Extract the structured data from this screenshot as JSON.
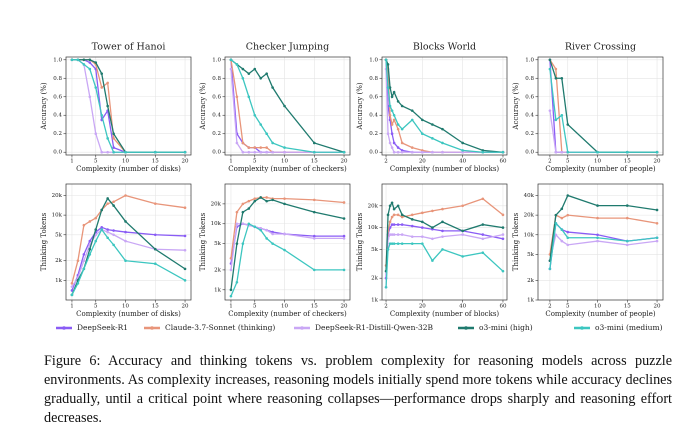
{
  "chart_data": [
    {
      "type": "line",
      "title": "Tower of Hanoi",
      "xlabel": "Complexity (number of disks)",
      "ylabel": "Accuracy (%)",
      "grid": true,
      "x": [
        1,
        2,
        3,
        4,
        5,
        6,
        7,
        8,
        10,
        15,
        20
      ],
      "xlim": [
        0,
        21
      ],
      "xticks": [
        1,
        5,
        10,
        15,
        20
      ],
      "ylim": [
        -0.03,
        1.03
      ],
      "yticks": [
        {
          "value": 0,
          "label": "0.0"
        },
        0.2,
        0.4,
        0.6,
        0.8,
        {
          "value": 1,
          "label": "1.0"
        }
      ],
      "series": [
        {
          "name": "DeepSeek-R1",
          "color": "#8a5cf5",
          "values": [
            1,
            1,
            1,
            0.97,
            0.9,
            0.35,
            0.45,
            0.05,
            0,
            0,
            0
          ]
        },
        {
          "name": "Claude-3.7-Sonnet (thinking)",
          "color": "#e8957a",
          "values": [
            1,
            1,
            1,
            1,
            0.95,
            0.7,
            0.75,
            0.15,
            0,
            0,
            0
          ]
        },
        {
          "name": "DeepSeek-R1-Distill-Qwen-32B",
          "color": "#c9a7f5",
          "values": [
            1,
            1,
            0.95,
            0.6,
            0.2,
            0,
            0,
            0,
            0,
            0,
            0
          ]
        },
        {
          "name": "o3-mini (high)",
          "color": "#1f7a6e",
          "values": [
            1,
            1,
            1,
            1,
            0.97,
            0.85,
            0.5,
            0.2,
            0,
            0,
            0
          ]
        },
        {
          "name": "o3-mini (medium)",
          "color": "#3cc6c0",
          "values": [
            1,
            1,
            0.95,
            0.9,
            0.7,
            0.4,
            0.15,
            0,
            0,
            0,
            0
          ]
        }
      ]
    },
    {
      "type": "line",
      "title": "Checker Jumping",
      "xlabel": "Complexity (number of checkers)",
      "ylabel": "Accuracy (%)",
      "grid": true,
      "x": [
        1,
        2,
        3,
        4,
        5,
        6,
        7,
        8,
        10,
        15,
        20
      ],
      "xlim": [
        0,
        21
      ],
      "xticks": [
        1,
        5,
        10,
        15,
        20
      ],
      "ylim": [
        -0.03,
        1.03
      ],
      "yticks": [
        {
          "value": 0,
          "label": "0.0"
        },
        0.2,
        0.4,
        0.6,
        0.8,
        {
          "value": 1,
          "label": "1.0"
        }
      ],
      "series": [
        {
          "name": "DeepSeek-R1",
          "color": "#8a5cf5",
          "values": [
            1,
            0.2,
            0.1,
            0.05,
            0.05,
            0,
            0,
            0,
            0,
            0,
            0
          ]
        },
        {
          "name": "Claude-3.7-Sonnet (thinking)",
          "color": "#e8957a",
          "values": [
            1,
            0.6,
            0.1,
            0.05,
            0.05,
            0.05,
            0.05,
            0,
            0,
            0,
            0
          ]
        },
        {
          "name": "DeepSeek-R1-Distill-Qwen-32B",
          "color": "#c9a7f5",
          "values": [
            0.9,
            0.1,
            0,
            0,
            0,
            0,
            0,
            0,
            0,
            0,
            0
          ]
        },
        {
          "name": "o3-mini (high)",
          "color": "#1f7a6e",
          "values": [
            1,
            0.95,
            0.9,
            0.85,
            0.9,
            0.8,
            0.85,
            0.7,
            0.5,
            0.1,
            0
          ]
        },
        {
          "name": "o3-mini (medium)",
          "color": "#3cc6c0",
          "values": [
            1,
            0.95,
            0.8,
            0.6,
            0.4,
            0.3,
            0.2,
            0.1,
            0.05,
            0,
            0
          ]
        }
      ]
    },
    {
      "type": "line",
      "title": "Blocks World",
      "xlabel": "Complexity (number of blocks)",
      "ylabel": "Accuracy (%)",
      "grid": true,
      "x": [
        2,
        3,
        4,
        5,
        6,
        8,
        10,
        15,
        20,
        25,
        30,
        40,
        50,
        60
      ],
      "xlim": [
        0,
        62
      ],
      "xticks": [
        2,
        20,
        40,
        60
      ],
      "ylim": [
        -0.03,
        1.03
      ],
      "yticks": [
        {
          "value": 0,
          "label": "0.0"
        },
        0.2,
        0.4,
        0.6,
        0.8,
        {
          "value": 1,
          "label": "1.0"
        }
      ],
      "series": [
        {
          "name": "DeepSeek-R1",
          "color": "#8a5cf5",
          "values": [
            1,
            0.5,
            0.35,
            0.2,
            0.1,
            0.05,
            0.02,
            0,
            0,
            0,
            0,
            0,
            0,
            0
          ]
        },
        {
          "name": "Claude-3.7-Sonnet (thinking)",
          "color": "#e8957a",
          "values": [
            1,
            0.9,
            0.4,
            0.3,
            0.35,
            0.25,
            0.1,
            0.05,
            0.02,
            0,
            0,
            0,
            0,
            0
          ]
        },
        {
          "name": "DeepSeek-R1-Distill-Qwen-32B",
          "color": "#c9a7f5",
          "values": [
            0.9,
            0.2,
            0.1,
            0.05,
            0,
            0,
            0,
            0,
            0,
            0,
            0,
            0,
            0,
            0
          ]
        },
        {
          "name": "o3-mini (high)",
          "color": "#1f7a6e",
          "values": [
            1,
            0.95,
            0.7,
            0.6,
            0.65,
            0.55,
            0.5,
            0.45,
            0.35,
            0.3,
            0.25,
            0.1,
            0.02,
            0
          ]
        },
        {
          "name": "o3-mini (medium)",
          "color": "#3cc6c0",
          "values": [
            1,
            0.7,
            0.5,
            0.45,
            0.4,
            0.3,
            0.25,
            0.35,
            0.2,
            0.15,
            0.1,
            0.02,
            0,
            0
          ]
        }
      ]
    },
    {
      "type": "line",
      "title": "River Crossing",
      "xlabel": "Complexity (number of people)",
      "ylabel": "Accuracy (%)",
      "grid": true,
      "x": [
        2,
        3,
        4,
        5,
        10,
        15,
        20
      ],
      "xlim": [
        0,
        21
      ],
      "xticks": [
        2,
        5,
        10,
        15,
        20
      ],
      "ylim": [
        -0.03,
        1.03
      ],
      "yticks": [
        {
          "value": 0,
          "label": "0.0"
        },
        0.2,
        0.4,
        0.6,
        0.8,
        {
          "value": 1,
          "label": "1.0"
        }
      ],
      "series": [
        {
          "name": "DeepSeek-R1",
          "color": "#8a5cf5",
          "values": [
            1,
            0,
            0,
            0,
            0,
            0,
            0
          ]
        },
        {
          "name": "Claude-3.7-Sonnet (thinking)",
          "color": "#e8957a",
          "values": [
            1,
            0.9,
            0,
            0,
            0,
            0,
            0
          ]
        },
        {
          "name": "DeepSeek-R1-Distill-Qwen-32B",
          "color": "#c9a7f5",
          "values": [
            0.45,
            0,
            0,
            0,
            0,
            0,
            0
          ]
        },
        {
          "name": "o3-mini (high)",
          "color": "#1f7a6e",
          "values": [
            1,
            0.8,
            0.8,
            0.3,
            0,
            0,
            0
          ]
        },
        {
          "name": "o3-mini (medium)",
          "color": "#3cc6c0",
          "values": [
            0.9,
            0.35,
            0.4,
            0,
            0,
            0,
            0
          ]
        }
      ]
    },
    {
      "type": "line",
      "xlabel": "Complexity (number of disks)",
      "ylabel": "Thinking Tokens",
      "grid": true,
      "yscale": "log",
      "x": [
        1,
        2,
        3,
        4,
        5,
        6,
        7,
        8,
        10,
        15,
        20
      ],
      "xlim": [
        0,
        21
      ],
      "xticks": [
        1,
        5,
        10,
        15,
        20
      ],
      "ylim": [
        500,
        30000
      ],
      "yticks": [
        {
          "value": 1000,
          "label": "1k"
        },
        {
          "value": 2000,
          "label": "2k"
        },
        {
          "value": 5000,
          "label": "5k"
        },
        {
          "value": 10000,
          "label": "10k"
        },
        {
          "value": 20000,
          "label": "20k"
        }
      ],
      "series": [
        {
          "name": "DeepSeek-R1",
          "color": "#8a5cf5",
          "values": [
            700,
            1200,
            2500,
            4000,
            5500,
            6500,
            6000,
            5800,
            5500,
            5000,
            4800
          ]
        },
        {
          "name": "Claude-3.7-Sonnet (thinking)",
          "color": "#e8957a",
          "values": [
            900,
            2000,
            7000,
            8000,
            9000,
            12000,
            15000,
            16000,
            20000,
            15000,
            13000
          ]
        },
        {
          "name": "DeepSeek-R1-Distill-Qwen-32B",
          "color": "#c9a7f5",
          "values": [
            800,
            1100,
            2000,
            3500,
            5000,
            6000,
            5500,
            5000,
            4000,
            3000,
            2900
          ]
        },
        {
          "name": "o3-mini (high)",
          "color": "#1f7a6e",
          "values": [
            600,
            1000,
            1500,
            3000,
            6000,
            12000,
            18000,
            14000,
            8000,
            3000,
            1500
          ]
        },
        {
          "name": "o3-mini (medium)",
          "color": "#3cc6c0",
          "values": [
            600,
            900,
            1500,
            2500,
            4000,
            6000,
            4500,
            3500,
            2000,
            1800,
            1000
          ]
        }
      ]
    },
    {
      "type": "line",
      "xlabel": "Complexity (number of checkers)",
      "ylabel": "Thinking Tokens",
      "grid": true,
      "yscale": "log",
      "x": [
        1,
        2,
        3,
        4,
        5,
        6,
        7,
        8,
        10,
        15,
        20
      ],
      "xlim": [
        0,
        21
      ],
      "xticks": [
        1,
        5,
        10,
        15,
        20
      ],
      "ylim": [
        700,
        40000
      ],
      "yticks": [
        {
          "value": 1000,
          "label": "1k"
        },
        {
          "value": 2000,
          "label": "2k"
        },
        {
          "value": 5000,
          "label": "5k"
        },
        {
          "value": 10000,
          "label": "10k"
        },
        {
          "value": 20000,
          "label": "20k"
        }
      ],
      "series": [
        {
          "name": "DeepSeek-R1",
          "color": "#8a5cf5",
          "values": [
            2500,
            9000,
            10000,
            9500,
            9000,
            8500,
            8000,
            7500,
            7000,
            6500,
            6500
          ]
        },
        {
          "name": "Claude-3.7-Sonnet (thinking)",
          "color": "#e8957a",
          "values": [
            3000,
            15000,
            20000,
            22000,
            24000,
            25000,
            25000,
            24000,
            24000,
            23000,
            21000
          ]
        },
        {
          "name": "DeepSeek-R1-Distill-Qwen-32B",
          "color": "#c9a7f5",
          "values": [
            2000,
            10000,
            10000,
            9500,
            9000,
            8500,
            8000,
            7000,
            7000,
            6000,
            6000
          ]
        },
        {
          "name": "o3-mini (high)",
          "color": "#1f7a6e",
          "values": [
            1000,
            5000,
            15000,
            17000,
            22000,
            25000,
            22000,
            23000,
            20000,
            15000,
            12000
          ]
        },
        {
          "name": "o3-mini (medium)",
          "color": "#3cc6c0",
          "values": [
            800,
            1300,
            5000,
            10000,
            9000,
            8000,
            6000,
            5000,
            4000,
            2000,
            2000
          ]
        }
      ]
    },
    {
      "type": "line",
      "xlabel": "Complexity (number of blocks)",
      "ylabel": "Thinking Tokens",
      "grid": true,
      "yscale": "log",
      "x": [
        2,
        3,
        4,
        5,
        6,
        8,
        10,
        15,
        20,
        25,
        30,
        40,
        50,
        60
      ],
      "xlim": [
        0,
        62
      ],
      "xticks": [
        2,
        20,
        40,
        60
      ],
      "ylim": [
        1000,
        40000
      ],
      "yticks": [
        {
          "value": 1000,
          "label": "1k"
        },
        {
          "value": 2000,
          "label": "2k"
        },
        {
          "value": 5000,
          "label": "5k"
        },
        {
          "value": 10000,
          "label": "10k"
        },
        {
          "value": 20000,
          "label": "20k"
        }
      ],
      "series": [
        {
          "name": "DeepSeek-R1",
          "color": "#8a5cf5",
          "values": [
            2000,
            8000,
            10000,
            11000,
            11000,
            11000,
            11000,
            10500,
            10000,
            9500,
            9000,
            9000,
            8000,
            7000
          ]
        },
        {
          "name": "Claude-3.7-Sonnet (thinking)",
          "color": "#e8957a",
          "values": [
            3000,
            9000,
            12000,
            14000,
            15000,
            15000,
            14000,
            15000,
            16000,
            17000,
            18000,
            20000,
            25000,
            15000
          ]
        },
        {
          "name": "DeepSeek-R1-Distill-Qwen-32B",
          "color": "#c9a7f5",
          "values": [
            1500,
            7000,
            8000,
            8000,
            8000,
            8000,
            8000,
            7500,
            7500,
            7000,
            7500,
            8000,
            7000,
            8000
          ]
        },
        {
          "name": "o3-mini (high)",
          "color": "#1f7a6e",
          "values": [
            2500,
            15000,
            20000,
            22000,
            18000,
            20000,
            15000,
            13000,
            12000,
            10000,
            12000,
            9000,
            11000,
            10000
          ]
        },
        {
          "name": "o3-mini (medium)",
          "color": "#3cc6c0",
          "values": [
            1500,
            5000,
            6000,
            6000,
            6000,
            6000,
            6000,
            6000,
            6000,
            3500,
            5000,
            4000,
            4500,
            2500
          ]
        }
      ]
    },
    {
      "type": "line",
      "xlabel": "Complexity (number of people)",
      "ylabel": "Thinking Tokens",
      "grid": true,
      "yscale": "log",
      "x": [
        2,
        3,
        4,
        5,
        10,
        15,
        20
      ],
      "xlim": [
        0,
        21
      ],
      "xticks": [
        2,
        5,
        10,
        15,
        20
      ],
      "ylim": [
        1000,
        60000
      ],
      "yticks": [
        {
          "value": 1000,
          "label": "1k"
        },
        {
          "value": 2000,
          "label": "2k"
        },
        {
          "value": 5000,
          "label": "5k"
        },
        {
          "value": 10000,
          "label": "10k"
        },
        {
          "value": 20000,
          "label": "20k"
        },
        {
          "value": 40000,
          "label": "40k"
        }
      ],
      "series": [
        {
          "name": "DeepSeek-R1",
          "color": "#8a5cf5",
          "values": [
            3000,
            15000,
            12000,
            11000,
            10000,
            8000,
            9000
          ]
        },
        {
          "name": "Claude-3.7-Sonnet (thinking)",
          "color": "#e8957a",
          "values": [
            5000,
            20000,
            18000,
            20000,
            18000,
            18000,
            15000
          ]
        },
        {
          "name": "DeepSeek-R1-Distill-Qwen-32B",
          "color": "#c9a7f5",
          "values": [
            4000,
            10000,
            8000,
            7000,
            8000,
            7000,
            8000
          ]
        },
        {
          "name": "o3-mini (high)",
          "color": "#1f7a6e",
          "values": [
            4000,
            20000,
            25000,
            40000,
            28000,
            28000,
            24000
          ]
        },
        {
          "name": "o3-mini (medium)",
          "color": "#3cc6c0",
          "values": [
            3000,
            15000,
            12000,
            9000,
            9000,
            8000,
            9000
          ]
        }
      ]
    }
  ],
  "caption": "Figure 6: Accuracy and thinking tokens vs. problem complexity for reasoning models across puzzle environments. As complexity increases, reasoning models initially spend more tokens while accuracy declines gradually, until a critical point where reasoning collapses—performance drops sharply and reasoning effort decreases."
}
